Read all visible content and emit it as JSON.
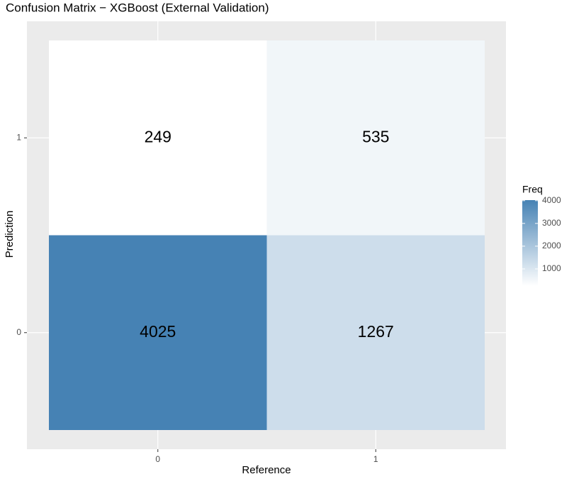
{
  "chart_data": {
    "type": "heatmap",
    "title": "Confusion Matrix − XGBoost (External Validation)",
    "x_label": "Reference",
    "y_label": "Prediction",
    "x_categories": [
      "0",
      "1"
    ],
    "y_categories": [
      "0",
      "1"
    ],
    "values": [
      [
        4025,
        1267
      ],
      [
        249,
        535
      ]
    ],
    "legend_title": "Freq",
    "clim": [
      249,
      4025
    ],
    "cticks": [
      1000,
      2000,
      3000,
      4000
    ],
    "low_color": "#ffffff",
    "high_color": "#4682b4",
    "grid": true
  }
}
